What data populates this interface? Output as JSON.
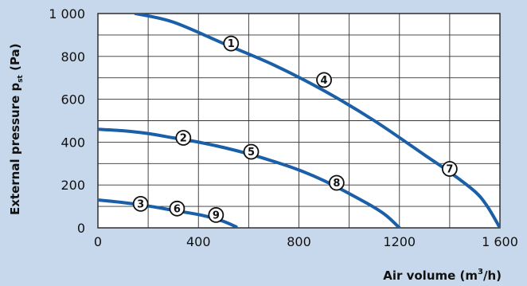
{
  "chart_data": {
    "type": "line",
    "xlabel_main": "Air volume (m",
    "xlabel_sup": "3",
    "xlabel_end": "/h)",
    "ylabel_main": "External pressure p",
    "ylabel_sub": "st",
    "ylabel_end": " (Pa)",
    "xlim": [
      0,
      1600
    ],
    "ylim": [
      0,
      1000
    ],
    "x_ticks": [
      0,
      400,
      800,
      1200,
      1600
    ],
    "x_tick_labels": [
      "0",
      "400",
      "800",
      "1200",
      "1 600"
    ],
    "y_ticks": [
      0,
      200,
      400,
      600,
      800,
      1000
    ],
    "y_tick_labels": [
      "0",
      "200",
      "400",
      "600",
      "800",
      "1 000"
    ],
    "grid": true,
    "line_color": "#1a5fa8",
    "background_color": "#c7d8ec",
    "series": [
      {
        "x": [
          150,
          300,
          500,
          700,
          900,
          1100,
          1300,
          1400,
          1500,
          1550,
          1600
        ],
        "y": [
          1000,
          960,
          860,
          760,
          640,
          500,
          340,
          260,
          170,
          100,
          0
        ]
      },
      {
        "x": [
          0,
          100,
          200,
          300,
          400,
          500,
          600,
          700,
          800,
          900,
          1000,
          1100,
          1150,
          1200
        ],
        "y": [
          460,
          453,
          440,
          420,
          400,
          375,
          345,
          310,
          270,
          220,
          160,
          95,
          55,
          0
        ]
      },
      {
        "x": [
          0,
          100,
          200,
          300,
          400,
          450,
          500,
          550
        ],
        "y": [
          130,
          118,
          102,
          82,
          62,
          48,
          30,
          5
        ]
      }
    ],
    "markers": [
      {
        "label": "1",
        "x": 530,
        "y": 860
      },
      {
        "label": "4",
        "x": 900,
        "y": 690
      },
      {
        "label": "7",
        "x": 1400,
        "y": 275
      },
      {
        "label": "2",
        "x": 340,
        "y": 420
      },
      {
        "label": "5",
        "x": 610,
        "y": 355
      },
      {
        "label": "8",
        "x": 950,
        "y": 210
      },
      {
        "label": "3",
        "x": 170,
        "y": 112
      },
      {
        "label": "6",
        "x": 315,
        "y": 90
      },
      {
        "label": "9",
        "x": 470,
        "y": 60
      }
    ]
  }
}
